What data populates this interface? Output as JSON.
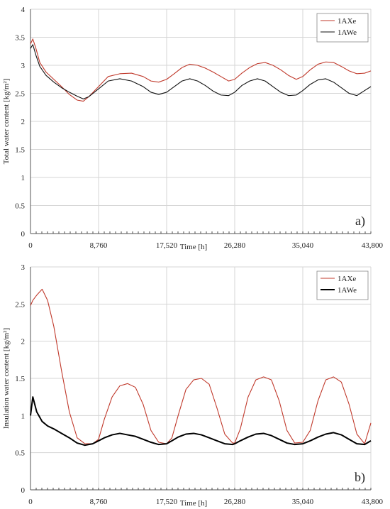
{
  "figure": {
    "panels": [
      {
        "panel_label": "a)"
      },
      {
        "panel_label": "b)"
      }
    ]
  },
  "chart_data": [
    {
      "type": "line",
      "xlabel": "Time [h]",
      "ylabel": "Total water content [kg/m²]",
      "xlim": [
        0,
        43800
      ],
      "ylim": [
        0,
        4
      ],
      "xticks": [
        0,
        8760,
        17520,
        26280,
        35040,
        43800
      ],
      "xtick_labels": [
        "0",
        "8,760",
        "17,520",
        "26,280",
        "35,040",
        "43,800"
      ],
      "yticks": [
        0,
        0.5,
        1,
        1.5,
        2,
        2.5,
        3,
        3.5,
        4
      ],
      "ytick_labels": [
        "0",
        "0.5",
        "1",
        "1.5",
        "2",
        "2.5",
        "3",
        "3.5",
        "4"
      ],
      "grid": true,
      "legend_position": "top-right",
      "panel_label": "a)",
      "series": [
        {
          "name": "1AXe",
          "color": "#c0392b",
          "x": [
            0,
            300,
            700,
            1200,
            2000,
            3000,
            4000,
            5000,
            6000,
            6800,
            7500,
            8760,
            10000,
            11500,
            13000,
            14500,
            15500,
            16500,
            17520,
            18500,
            19500,
            20500,
            21500,
            22500,
            23500,
            24500,
            25500,
            26280,
            27200,
            28200,
            29200,
            30200,
            31200,
            32200,
            33200,
            34200,
            35040,
            36000,
            37000,
            38000,
            39000,
            40000,
            41000,
            42000,
            43000,
            43800
          ],
          "y": [
            3.38,
            3.47,
            3.3,
            3.05,
            2.88,
            2.75,
            2.62,
            2.48,
            2.38,
            2.36,
            2.44,
            2.62,
            2.8,
            2.85,
            2.86,
            2.8,
            2.72,
            2.7,
            2.75,
            2.85,
            2.96,
            3.02,
            3.0,
            2.95,
            2.88,
            2.8,
            2.72,
            2.75,
            2.86,
            2.96,
            3.03,
            3.05,
            3.0,
            2.92,
            2.82,
            2.75,
            2.8,
            2.92,
            3.02,
            3.06,
            3.05,
            2.98,
            2.9,
            2.85,
            2.86,
            2.9
          ]
        },
        {
          "name": "1AWe",
          "color": "#111111",
          "x": [
            0,
            300,
            700,
            1200,
            2000,
            3000,
            4000,
            5000,
            6000,
            6800,
            7500,
            8760,
            10000,
            11500,
            13000,
            14500,
            15500,
            16500,
            17520,
            18500,
            19500,
            20500,
            21500,
            22500,
            23500,
            24500,
            25500,
            26280,
            27200,
            28200,
            29200,
            30200,
            31200,
            32200,
            33200,
            34200,
            35040,
            36000,
            37000,
            38000,
            39000,
            40000,
            41000,
            42000,
            43000,
            43800
          ],
          "y": [
            3.3,
            3.37,
            3.18,
            2.98,
            2.82,
            2.7,
            2.6,
            2.52,
            2.45,
            2.4,
            2.44,
            2.58,
            2.72,
            2.76,
            2.72,
            2.62,
            2.52,
            2.48,
            2.52,
            2.62,
            2.72,
            2.76,
            2.72,
            2.64,
            2.54,
            2.47,
            2.46,
            2.52,
            2.64,
            2.72,
            2.76,
            2.72,
            2.62,
            2.52,
            2.46,
            2.47,
            2.55,
            2.66,
            2.74,
            2.76,
            2.7,
            2.6,
            2.5,
            2.46,
            2.55,
            2.62
          ]
        }
      ]
    },
    {
      "type": "line",
      "xlabel": "Time [h]",
      "ylabel": "Insulation water content [kg/m²]",
      "xlim": [
        0,
        43800
      ],
      "ylim": [
        0,
        3
      ],
      "xticks": [
        0,
        8760,
        17520,
        26280,
        35040,
        43800
      ],
      "xtick_labels": [
        "0",
        "8,760",
        "17,520",
        "26,280",
        "35,040",
        "43,800"
      ],
      "yticks": [
        0,
        0.5,
        1,
        1.5,
        2,
        2.5,
        3
      ],
      "ytick_labels": [
        "0",
        "0.5",
        "1",
        "1.5",
        "2",
        "2.5",
        "3"
      ],
      "grid": true,
      "legend_position": "top-right",
      "panel_label": "b)",
      "series": [
        {
          "name": "1AXe",
          "color": "#c0392b",
          "x": [
            0,
            300,
            800,
            1500,
            2200,
            3000,
            4000,
            5000,
            6000,
            7000,
            8000,
            8760,
            9500,
            10500,
            11500,
            12500,
            13500,
            14500,
            15500,
            16500,
            17520,
            18200,
            19000,
            20000,
            21000,
            22000,
            23000,
            24000,
            25000,
            26000,
            26280,
            27000,
            28000,
            29000,
            30000,
            31000,
            32000,
            33000,
            34000,
            35040,
            36000,
            37000,
            38000,
            39000,
            40000,
            41000,
            42000,
            43000,
            43800
          ],
          "y": [
            2.48,
            2.55,
            2.62,
            2.7,
            2.55,
            2.2,
            1.6,
            1.05,
            0.7,
            0.62,
            0.62,
            0.68,
            0.95,
            1.25,
            1.4,
            1.43,
            1.38,
            1.15,
            0.8,
            0.64,
            0.62,
            0.7,
            1.0,
            1.35,
            1.48,
            1.5,
            1.42,
            1.1,
            0.75,
            0.63,
            0.63,
            0.82,
            1.25,
            1.48,
            1.52,
            1.48,
            1.2,
            0.8,
            0.63,
            0.64,
            0.8,
            1.2,
            1.48,
            1.52,
            1.45,
            1.15,
            0.75,
            0.62,
            0.9
          ]
        },
        {
          "name": "1AWe",
          "color": "#000000",
          "x": [
            0,
            300,
            800,
            1500,
            2200,
            3000,
            4000,
            5000,
            6000,
            7000,
            8000,
            8760,
            9500,
            10500,
            11500,
            12500,
            13500,
            14500,
            15500,
            16500,
            17520,
            18200,
            19000,
            20000,
            21000,
            22000,
            23000,
            24000,
            25000,
            26000,
            26280,
            27000,
            28000,
            29000,
            30000,
            31000,
            32000,
            33000,
            34000,
            35040,
            36000,
            37000,
            38000,
            39000,
            40000,
            41000,
            42000,
            43000,
            43800
          ],
          "y": [
            1.0,
            1.25,
            1.05,
            0.92,
            0.86,
            0.82,
            0.76,
            0.7,
            0.63,
            0.6,
            0.62,
            0.66,
            0.7,
            0.74,
            0.76,
            0.74,
            0.72,
            0.68,
            0.64,
            0.61,
            0.62,
            0.66,
            0.71,
            0.75,
            0.76,
            0.74,
            0.7,
            0.66,
            0.62,
            0.61,
            0.62,
            0.66,
            0.71,
            0.75,
            0.76,
            0.73,
            0.68,
            0.63,
            0.61,
            0.62,
            0.66,
            0.71,
            0.75,
            0.77,
            0.74,
            0.68,
            0.62,
            0.61,
            0.66
          ]
        }
      ]
    }
  ]
}
